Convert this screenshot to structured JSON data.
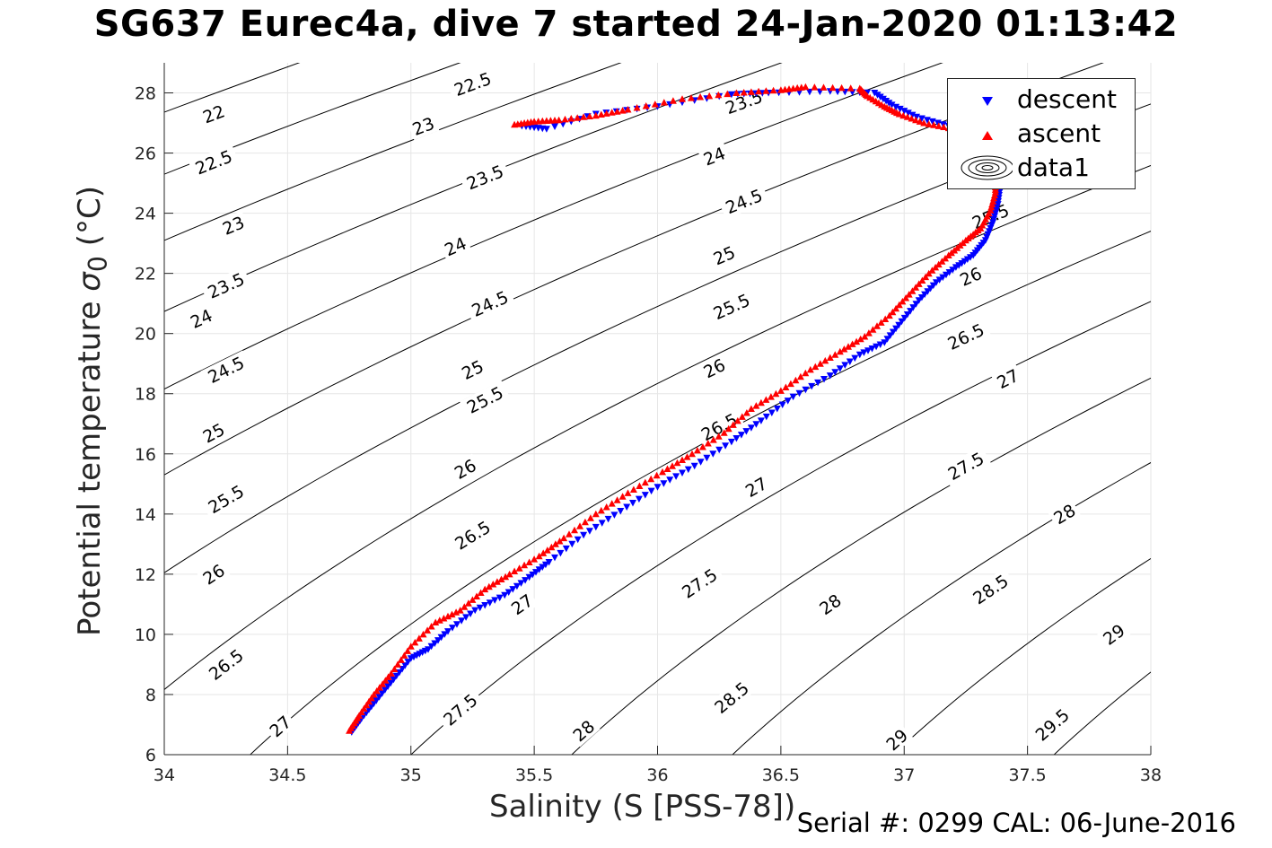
{
  "title": "SG637 Eurec4a, dive 7 started 24-Jan-2020 01:13:42",
  "footer": "Serial #: 0299 CAL: 06-June-2016",
  "legend": {
    "items": [
      "descent",
      "ascent",
      "data1"
    ]
  },
  "colors": {
    "descent": "#0000ff",
    "ascent": "#ff0000",
    "contours": "#000000",
    "grid": "#e6e6e6"
  },
  "chart_data": {
    "type": "scatter",
    "title": "SG637 Eurec4a, dive 7 started 24-Jan-2020 01:13:42",
    "xlabel": "Salinity (S [PSS-78])",
    "ylabel": "Potential temperature σ0 (°C)",
    "xlim": [
      34,
      38
    ],
    "ylim": [
      6,
      29
    ],
    "xticks": [
      34,
      34.5,
      35,
      35.5,
      36,
      36.5,
      37,
      37.5,
      38
    ],
    "yticks": [
      6,
      8,
      10,
      12,
      14,
      16,
      18,
      20,
      22,
      24,
      26,
      28
    ],
    "grid": true,
    "legend_position": "top-right",
    "series": [
      {
        "name": "descent",
        "marker": "triangle-down",
        "color": "#0000ff",
        "points": [
          [
            34.76,
            6.75
          ],
          [
            34.8,
            7.2
          ],
          [
            34.86,
            7.8
          ],
          [
            34.93,
            8.5
          ],
          [
            35.0,
            9.2
          ],
          [
            35.07,
            9.5
          ],
          [
            35.15,
            10.1
          ],
          [
            35.26,
            10.8
          ],
          [
            35.38,
            11.3
          ],
          [
            35.48,
            11.9
          ],
          [
            35.56,
            12.4
          ],
          [
            35.7,
            13.3
          ],
          [
            35.85,
            14.1
          ],
          [
            36.0,
            14.9
          ],
          [
            36.15,
            15.6
          ],
          [
            36.3,
            16.4
          ],
          [
            36.42,
            17.1
          ],
          [
            36.55,
            17.9
          ],
          [
            36.7,
            18.6
          ],
          [
            36.82,
            19.3
          ],
          [
            36.92,
            19.7
          ],
          [
            36.99,
            20.4
          ],
          [
            37.06,
            21.1
          ],
          [
            37.13,
            21.7
          ],
          [
            37.21,
            22.2
          ],
          [
            37.28,
            22.6
          ],
          [
            37.33,
            23.1
          ],
          [
            37.36,
            23.7
          ],
          [
            37.38,
            24.3
          ],
          [
            37.39,
            24.9
          ],
          [
            37.39,
            25.4
          ],
          [
            37.38,
            25.9
          ],
          [
            37.36,
            26.2
          ],
          [
            37.3,
            26.6
          ],
          [
            37.18,
            26.9
          ],
          [
            37.05,
            27.2
          ],
          [
            36.95,
            27.6
          ],
          [
            36.88,
            28.0
          ],
          [
            36.7,
            28.05
          ],
          [
            36.45,
            28.0
          ],
          [
            36.3,
            27.95
          ],
          [
            36.0,
            27.55
          ],
          [
            35.75,
            27.3
          ],
          [
            35.55,
            26.8
          ],
          [
            35.45,
            26.9
          ]
        ]
      },
      {
        "name": "ascent",
        "marker": "triangle-up",
        "color": "#ff0000",
        "points": [
          [
            34.75,
            6.8
          ],
          [
            34.79,
            7.3
          ],
          [
            34.85,
            8.0
          ],
          [
            34.92,
            8.7
          ],
          [
            35.0,
            9.6
          ],
          [
            35.1,
            10.4
          ],
          [
            35.2,
            10.8
          ],
          [
            35.3,
            11.5
          ],
          [
            35.4,
            12.0
          ],
          [
            35.52,
            12.6
          ],
          [
            35.62,
            13.2
          ],
          [
            35.75,
            14.0
          ],
          [
            35.88,
            14.7
          ],
          [
            36.02,
            15.4
          ],
          [
            36.14,
            16.0
          ],
          [
            36.27,
            16.7
          ],
          [
            36.38,
            17.5
          ],
          [
            36.5,
            18.1
          ],
          [
            36.62,
            18.8
          ],
          [
            36.74,
            19.4
          ],
          [
            36.84,
            19.9
          ],
          [
            36.94,
            20.6
          ],
          [
            37.02,
            21.3
          ],
          [
            37.1,
            22.0
          ],
          [
            37.18,
            22.6
          ],
          [
            37.25,
            23.1
          ],
          [
            37.31,
            23.5
          ],
          [
            37.35,
            24.1
          ],
          [
            37.37,
            24.7
          ],
          [
            37.37,
            25.2
          ],
          [
            37.35,
            25.8
          ],
          [
            37.31,
            26.3
          ],
          [
            37.2,
            26.8
          ],
          [
            37.08,
            27.0
          ],
          [
            36.98,
            27.3
          ],
          [
            36.92,
            27.55
          ],
          [
            36.85,
            27.9
          ],
          [
            36.82,
            28.15
          ],
          [
            36.6,
            28.2
          ],
          [
            36.5,
            28.1
          ],
          [
            36.32,
            28.0
          ],
          [
            36.1,
            27.8
          ],
          [
            35.88,
            27.45
          ],
          [
            35.75,
            27.25
          ],
          [
            35.6,
            27.1
          ],
          [
            35.5,
            27.05
          ],
          [
            35.42,
            26.95
          ]
        ]
      }
    ],
    "contours": {
      "quantity": "sigma0",
      "levels": [
        22,
        22.5,
        23,
        23.5,
        24,
        24.5,
        25,
        25.5,
        26,
        26.5,
        27,
        27.5,
        28,
        28.5,
        29,
        29.5
      ],
      "labels": [
        {
          "text": "22",
          "x": 34.2,
          "y": 27.3
        },
        {
          "text": "22.5",
          "x": 34.2,
          "y": 25.7
        },
        {
          "text": "23",
          "x": 34.28,
          "y": 23.6
        },
        {
          "text": "23.5",
          "x": 34.25,
          "y": 21.6
        },
        {
          "text": "24",
          "x": 34.15,
          "y": 20.5
        },
        {
          "text": "24.5",
          "x": 34.25,
          "y": 18.8
        },
        {
          "text": "25",
          "x": 34.2,
          "y": 16.7
        },
        {
          "text": "25.5",
          "x": 34.25,
          "y": 14.5
        },
        {
          "text": "26",
          "x": 34.2,
          "y": 12.0
        },
        {
          "text": "26.5",
          "x": 34.25,
          "y": 9.0
        },
        {
          "text": "27",
          "x": 34.47,
          "y": 6.95
        },
        {
          "text": "22.5",
          "x": 35.25,
          "y": 28.3
        },
        {
          "text": "23",
          "x": 35.05,
          "y": 26.9
        },
        {
          "text": "23.5",
          "x": 35.3,
          "y": 25.2
        },
        {
          "text": "24",
          "x": 35.18,
          "y": 22.9
        },
        {
          "text": "24.5",
          "x": 35.32,
          "y": 21.0
        },
        {
          "text": "25",
          "x": 35.25,
          "y": 18.8
        },
        {
          "text": "25.5",
          "x": 35.3,
          "y": 17.8
        },
        {
          "text": "26",
          "x": 35.22,
          "y": 15.5
        },
        {
          "text": "26.5",
          "x": 35.25,
          "y": 13.3
        },
        {
          "text": "27",
          "x": 35.45,
          "y": 11.0
        },
        {
          "text": "27.5",
          "x": 35.2,
          "y": 7.5
        },
        {
          "text": "28",
          "x": 35.7,
          "y": 6.8
        },
        {
          "text": "23.5",
          "x": 36.35,
          "y": 27.7
        },
        {
          "text": "24",
          "x": 36.23,
          "y": 25.9
        },
        {
          "text": "24.5",
          "x": 36.35,
          "y": 24.4
        },
        {
          "text": "25",
          "x": 36.27,
          "y": 22.6
        },
        {
          "text": "25.5",
          "x": 36.3,
          "y": 20.9
        },
        {
          "text": "26",
          "x": 36.23,
          "y": 18.85
        },
        {
          "text": "26.5",
          "x": 36.25,
          "y": 16.9
        },
        {
          "text": "27",
          "x": 36.4,
          "y": 14.9
        },
        {
          "text": "27.5",
          "x": 36.17,
          "y": 11.7
        },
        {
          "text": "28",
          "x": 36.7,
          "y": 11.0
        },
        {
          "text": "28.5",
          "x": 36.3,
          "y": 7.9
        },
        {
          "text": "29",
          "x": 36.97,
          "y": 6.5
        },
        {
          "text": "25.5",
          "x": 37.35,
          "y": 23.9
        },
        {
          "text": "26",
          "x": 37.27,
          "y": 21.9
        },
        {
          "text": "26.5",
          "x": 37.25,
          "y": 19.9
        },
        {
          "text": "27",
          "x": 37.42,
          "y": 18.5
        },
        {
          "text": "27.5",
          "x": 37.25,
          "y": 15.6
        },
        {
          "text": "28",
          "x": 37.65,
          "y": 14.0
        },
        {
          "text": "28.5",
          "x": 37.35,
          "y": 11.5
        },
        {
          "text": "29",
          "x": 37.85,
          "y": 10.0
        },
        {
          "text": "29.5",
          "x": 37.6,
          "y": 7.0
        }
      ]
    }
  }
}
